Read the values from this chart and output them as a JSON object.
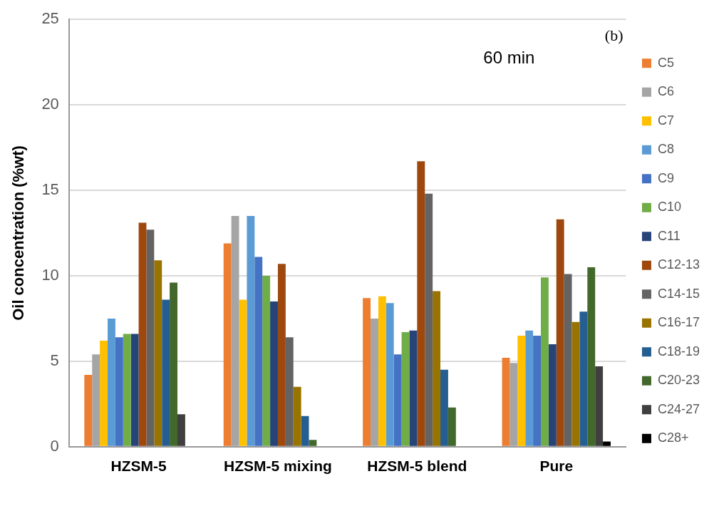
{
  "chart_data": {
    "type": "bar",
    "ylabel": "Oil concentration (%wt)",
    "categories": [
      "HZSM-5",
      "HZSM-5 mixing",
      "HZSM-5 blend",
      "Pure"
    ],
    "series": [
      {
        "name": "C5",
        "color": "#ed7d31",
        "values": [
          4.2,
          11.9,
          8.7,
          5.2
        ]
      },
      {
        "name": "C6",
        "color": "#a5a5a5",
        "values": [
          5.4,
          13.5,
          7.5,
          4.9
        ]
      },
      {
        "name": "C7",
        "color": "#ffc000",
        "values": [
          6.2,
          8.6,
          8.8,
          6.5
        ]
      },
      {
        "name": "C8",
        "color": "#5b9bd5",
        "values": [
          7.5,
          13.5,
          8.4,
          6.8
        ]
      },
      {
        "name": "C9",
        "color": "#4472c4",
        "values": [
          6.4,
          11.1,
          5.4,
          6.5
        ]
      },
      {
        "name": "C10",
        "color": "#70ad47",
        "values": [
          6.6,
          10.0,
          6.7,
          9.9
        ]
      },
      {
        "name": "C11",
        "color": "#264478",
        "values": [
          6.6,
          8.5,
          6.8,
          6.0
        ]
      },
      {
        "name": "C12-13",
        "color": "#9e480e",
        "values": [
          13.1,
          10.7,
          16.7,
          13.3
        ]
      },
      {
        "name": "C14-15",
        "color": "#636363",
        "values": [
          12.7,
          6.4,
          14.8,
          10.1
        ]
      },
      {
        "name": "C16-17",
        "color": "#997300",
        "values": [
          10.9,
          3.5,
          9.1,
          7.3
        ]
      },
      {
        "name": "C18-19",
        "color": "#255e91",
        "values": [
          8.6,
          1.8,
          4.5,
          7.9
        ]
      },
      {
        "name": "C20-23",
        "color": "#43682b",
        "values": [
          9.6,
          0.4,
          2.3,
          10.5
        ]
      },
      {
        "name": "C24-27",
        "color": "#3f3f3f",
        "values": [
          1.9,
          null,
          null,
          4.7
        ]
      },
      {
        "name": "C28+",
        "color": "#000000",
        "values": [
          null,
          null,
          null,
          0.3
        ]
      }
    ],
    "ylim": [
      0,
      25
    ],
    "yticks": [
      0,
      5,
      10,
      15,
      20,
      25
    ],
    "grid": "y",
    "legend": "right",
    "annotations": [
      "60 min",
      "(b)"
    ]
  }
}
